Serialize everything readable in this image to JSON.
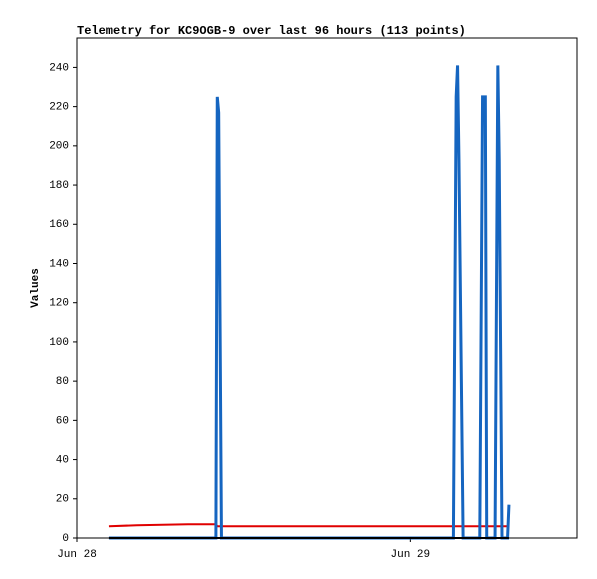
{
  "chart_data": {
    "type": "line",
    "title": "Telemetry for KC9OGB-9 over last 96 hours (113 points)",
    "y_label": "Values",
    "x": [
      2.3,
      4.3,
      8.0,
      10.0,
      10.1,
      10.2,
      10.4,
      27.1,
      27.2,
      27.3,
      27.4,
      27.5,
      27.6,
      27.8,
      29.0,
      29.1,
      29.2,
      29.4,
      29.5,
      30.1,
      30.2,
      30.3,
      30.4,
      30.5,
      30.6,
      31.0,
      31.1
    ],
    "series": [
      {
        "color": "#e00000",
        "values": [
          6,
          6.5,
          7,
          7,
          6,
          6,
          6,
          6,
          6,
          6,
          6,
          6,
          6,
          6,
          6,
          6,
          6,
          6,
          6,
          6,
          6,
          6,
          6,
          6,
          6,
          6,
          6
        ]
      },
      {
        "color": "#1565c0",
        "values": [
          0,
          0,
          0,
          0,
          225,
          217,
          0,
          0,
          112,
          225,
          241,
          193,
          128,
          0,
          0,
          112,
          225,
          225,
          0,
          0,
          121,
          241,
          193,
          97,
          0,
          0,
          17
        ]
      },
      {
        "color": "#000000",
        "values": [
          0,
          0,
          0,
          0,
          0,
          0,
          0,
          0,
          0,
          0,
          0,
          0,
          0,
          0,
          0,
          0,
          0,
          0,
          0,
          0,
          0,
          0,
          0,
          0,
          0,
          0,
          0
        ]
      }
    ],
    "xlim": [
      0,
      36
    ],
    "xticks": [
      {
        "value": 0,
        "label": "Jun 28"
      },
      {
        "value": 24,
        "label": "Jun 29"
      }
    ],
    "ylim": [
      0,
      255
    ],
    "yticks": [
      0,
      20,
      40,
      60,
      80,
      100,
      120,
      140,
      160,
      180,
      200,
      220,
      240
    ]
  }
}
